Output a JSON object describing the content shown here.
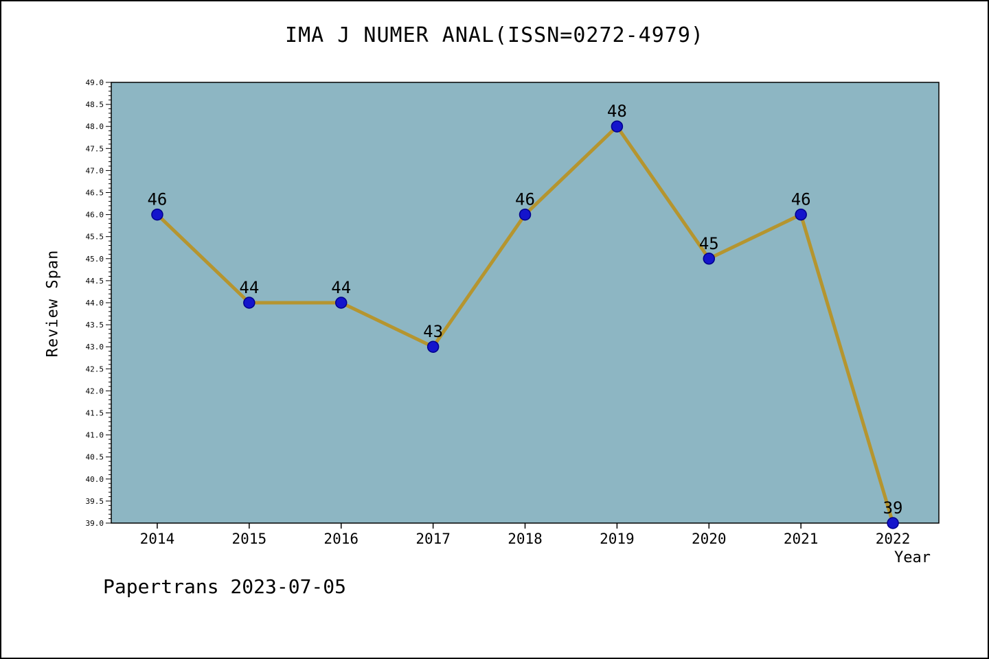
{
  "page": {
    "footer": "Papertrans 2023-07-05"
  },
  "chart_data": {
    "type": "line",
    "title": "IMA J NUMER ANAL(ISSN=0272-4979)",
    "xlabel": "Year",
    "ylabel": "Review Span",
    "categories": [
      "2014",
      "2015",
      "2016",
      "2017",
      "2018",
      "2019",
      "2020",
      "2021",
      "2022"
    ],
    "values": [
      46,
      44,
      44,
      43,
      46,
      48,
      45,
      46,
      39
    ],
    "point_labels": [
      "46",
      "44",
      "44",
      "43",
      "46",
      "48",
      "45",
      "46",
      "39"
    ],
    "ylim": [
      39.0,
      49.0
    ],
    "ytick_step": 0.5,
    "yminor_step": 0.1,
    "grid": false,
    "legend": null,
    "colors": {
      "plot_bg": "#8db6c3",
      "line": "#b5952f",
      "marker": "#1414cc",
      "marker_edge": "#00008b",
      "axis": "#000000"
    }
  }
}
